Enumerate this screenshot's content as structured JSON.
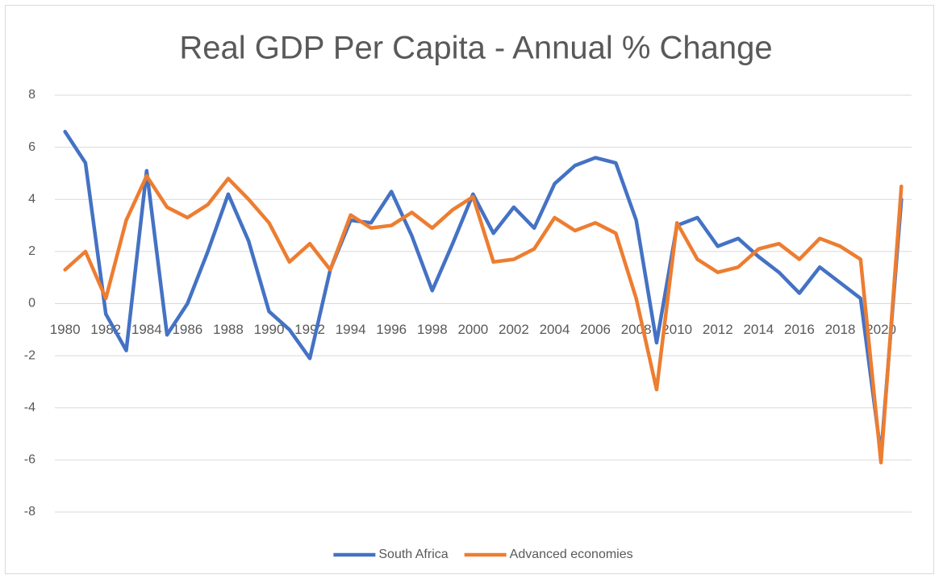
{
  "chart_data": {
    "type": "line",
    "title": "Real GDP Per Capita - Annual % Change",
    "categories": [
      "1980",
      null,
      "1982",
      null,
      "1984",
      null,
      "1986",
      null,
      "1988",
      null,
      "1990",
      null,
      "1992",
      null,
      "1994",
      null,
      "1996",
      null,
      "1998",
      null,
      "2000",
      null,
      "2002",
      null,
      "2004",
      null,
      "2006",
      null,
      "2008",
      null,
      "2010",
      null,
      "2012",
      null,
      "2014",
      null,
      "2016",
      null,
      "2018",
      null,
      "2020",
      null
    ],
    "series": [
      {
        "name": "South Africa",
        "color": "#4472c4",
        "values": [
          6.6,
          5.4,
          -0.4,
          -1.8,
          5.1,
          -1.2,
          0.0,
          2.0,
          4.2,
          2.4,
          -0.3,
          -1.0,
          -2.1,
          1.3,
          3.2,
          3.1,
          4.3,
          2.6,
          0.5,
          2.3,
          4.2,
          2.7,
          3.7,
          2.9,
          4.6,
          5.3,
          5.6,
          5.4,
          3.2,
          -1.5,
          3.0,
          3.3,
          2.2,
          2.5,
          1.8,
          1.2,
          0.4,
          1.4,
          0.8,
          0.2,
          -5.8,
          4.0
        ]
      },
      {
        "name": "Advanced economies",
        "color": "#ed7d31",
        "values": [
          1.3,
          2.0,
          0.2,
          3.2,
          4.9,
          3.7,
          3.3,
          3.8,
          4.8,
          4.0,
          3.1,
          1.6,
          2.3,
          1.3,
          3.4,
          2.9,
          3.0,
          3.5,
          2.9,
          3.6,
          4.1,
          1.6,
          1.7,
          2.1,
          3.3,
          2.8,
          3.1,
          2.7,
          0.2,
          -3.3,
          3.1,
          1.7,
          1.2,
          1.4,
          2.1,
          2.3,
          1.7,
          2.5,
          2.2,
          1.7,
          -6.1,
          4.5
        ]
      }
    ],
    "ylim": [
      -8,
      8
    ],
    "yticks": [
      -8,
      -6,
      -4,
      -2,
      0,
      2,
      4,
      6,
      8
    ],
    "grid": true,
    "legend": "bottom"
  }
}
